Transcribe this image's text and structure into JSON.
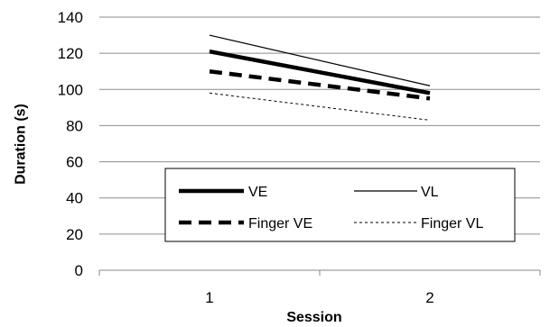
{
  "chart_data": {
    "type": "line",
    "xlabel": "Session",
    "ylabel": "Duration (s)",
    "ylim": [
      0,
      140
    ],
    "yticks": [
      0,
      20,
      40,
      60,
      80,
      100,
      120,
      140
    ],
    "categories": [
      "1",
      "2"
    ],
    "grid": "horizontal",
    "legend_position": "inside-bottom-center",
    "series": [
      {
        "name": "VE",
        "values": [
          121,
          98
        ],
        "color": "#000000",
        "style": "thick-solid"
      },
      {
        "name": "VL",
        "values": [
          130,
          102
        ],
        "color": "#000000",
        "style": "thin-solid"
      },
      {
        "name": "Finger VE",
        "values": [
          110,
          95
        ],
        "color": "#000000",
        "style": "thick-dashed"
      },
      {
        "name": "Finger VL",
        "values": [
          98,
          83
        ],
        "color": "#000000",
        "style": "thin-dotted"
      }
    ]
  }
}
